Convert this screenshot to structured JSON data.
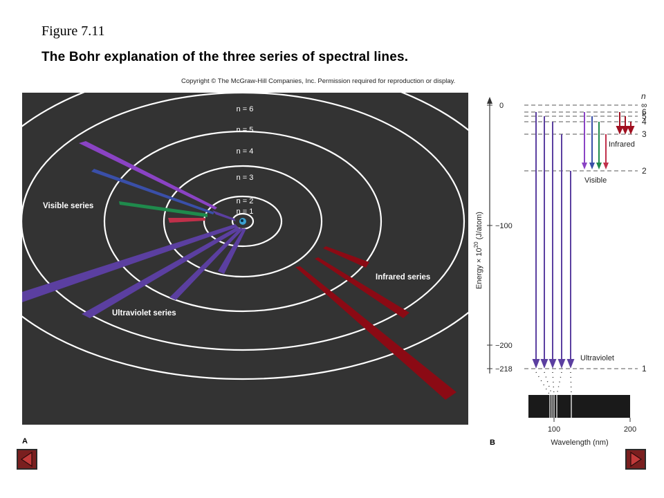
{
  "figure_number": "Figure 7.11",
  "title": "The Bohr explanation of the three series of spectral lines.",
  "copyright": "Copyright © The McGraw-Hill Companies, Inc. Permission required for reproduction or display.",
  "panel_a": {
    "letter": "A",
    "orbit_labels": [
      "n = 1",
      "n = 2",
      "n = 3",
      "n = 4",
      "n = 5",
      "n = 6"
    ],
    "series_labels": {
      "visible": "Visible series",
      "ultraviolet": "Ultraviolet series",
      "infrared": "Infrared series"
    }
  },
  "panel_b": {
    "letter": "B",
    "n_header": "n",
    "level_labels": [
      "∞",
      "6",
      "5",
      "4",
      "3",
      "2",
      "1"
    ],
    "energy_ticks": [
      "0",
      "−100",
      "−200",
      "−218"
    ],
    "energy_axis_label": "Energy × 10",
    "energy_axis_sup": "20",
    "energy_axis_unit": " (J/atom)",
    "series_labels": {
      "infrared": "Infrared",
      "visible": "Visible",
      "ultraviolet": "Ultraviolet"
    },
    "wavelength_ticks": [
      "100",
      "200"
    ],
    "wavelength_label": "Wavelength (nm)"
  },
  "colors": {
    "panel_bg": "#333333",
    "ultraviolet": "#5b3fa0",
    "violet": "#8a43c4",
    "blue": "#3a4fa8",
    "green": "#1f8a4c",
    "red": "#c0304a",
    "infrared": "#8b0a14",
    "nav_button": "#7a1f1f"
  },
  "navigation": {
    "previous_icon": "triangle-left-icon",
    "next_icon": "triangle-right-icon"
  }
}
